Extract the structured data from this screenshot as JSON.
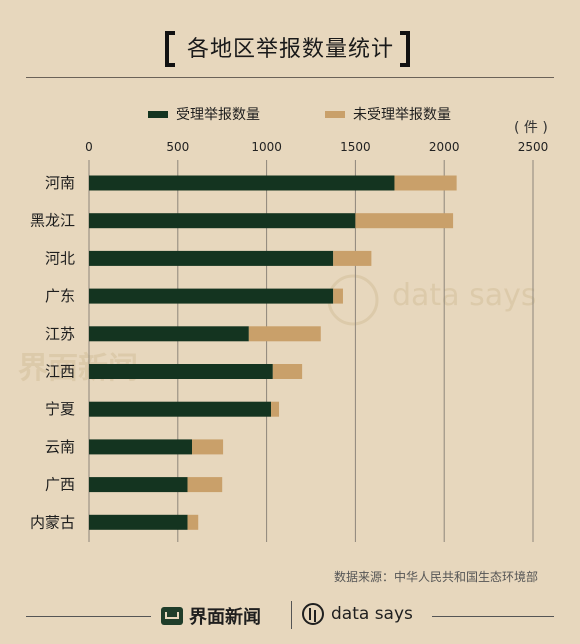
{
  "title": "各地区举报数量统计",
  "unit_label": "( 件 )",
  "legend": [
    {
      "label": "受理举报数量",
      "color": "#143420"
    },
    {
      "label": "未受理举报数量",
      "color": "#c9a06a"
    }
  ],
  "source": "数据来源：中华人民共和国生态环境部",
  "footer": {
    "brand_left": "界面新闻",
    "brand_right": "data says"
  },
  "watermark": {
    "left": "界面新闻",
    "right": "data says"
  },
  "chart_data": {
    "type": "bar",
    "orientation": "horizontal",
    "stacked": true,
    "categories": [
      "河南",
      "黑龙江",
      "河北",
      "广东",
      "江苏",
      "江西",
      "宁夏",
      "云南",
      "广西",
      "内蒙古"
    ],
    "series": [
      {
        "name": "受理举报数量",
        "color": "#143420",
        "values": [
          1720,
          1500,
          1375,
          1375,
          900,
          1035,
          1025,
          580,
          555,
          555
        ]
      },
      {
        "name": "未受理举报数量",
        "color": "#c9a06a",
        "values": [
          350,
          550,
          215,
          55,
          405,
          165,
          45,
          175,
          195,
          60
        ]
      }
    ],
    "xticks": [
      0,
      500,
      1000,
      1500,
      2000,
      2500
    ],
    "xlim": [
      0,
      2500
    ],
    "grid": true
  }
}
